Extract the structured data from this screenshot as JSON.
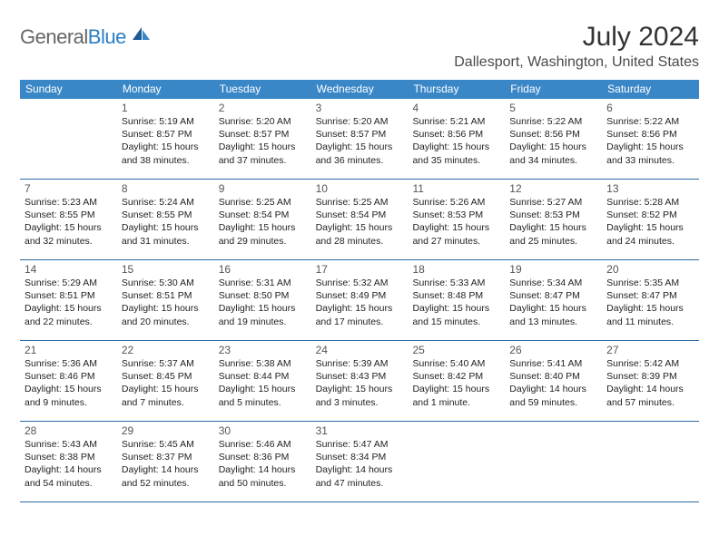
{
  "brand": {
    "general": "General",
    "blue": "Blue"
  },
  "title": "July 2024",
  "location": "Dallesport, Washington, United States",
  "colors": {
    "header_bg": "#3a87c8",
    "header_text": "#ffffff",
    "border": "#2a6aa5",
    "body_text": "#222222",
    "daynum_text": "#555555",
    "page_bg": "#ffffff"
  },
  "day_names": [
    "Sunday",
    "Monday",
    "Tuesday",
    "Wednesday",
    "Thursday",
    "Friday",
    "Saturday"
  ],
  "weeks": [
    [
      {
        "day": "",
        "sunrise": "",
        "sunset": "",
        "daylight": ""
      },
      {
        "day": "1",
        "sunrise": "Sunrise: 5:19 AM",
        "sunset": "Sunset: 8:57 PM",
        "daylight": "Daylight: 15 hours and 38 minutes."
      },
      {
        "day": "2",
        "sunrise": "Sunrise: 5:20 AM",
        "sunset": "Sunset: 8:57 PM",
        "daylight": "Daylight: 15 hours and 37 minutes."
      },
      {
        "day": "3",
        "sunrise": "Sunrise: 5:20 AM",
        "sunset": "Sunset: 8:57 PM",
        "daylight": "Daylight: 15 hours and 36 minutes."
      },
      {
        "day": "4",
        "sunrise": "Sunrise: 5:21 AM",
        "sunset": "Sunset: 8:56 PM",
        "daylight": "Daylight: 15 hours and 35 minutes."
      },
      {
        "day": "5",
        "sunrise": "Sunrise: 5:22 AM",
        "sunset": "Sunset: 8:56 PM",
        "daylight": "Daylight: 15 hours and 34 minutes."
      },
      {
        "day": "6",
        "sunrise": "Sunrise: 5:22 AM",
        "sunset": "Sunset: 8:56 PM",
        "daylight": "Daylight: 15 hours and 33 minutes."
      }
    ],
    [
      {
        "day": "7",
        "sunrise": "Sunrise: 5:23 AM",
        "sunset": "Sunset: 8:55 PM",
        "daylight": "Daylight: 15 hours and 32 minutes."
      },
      {
        "day": "8",
        "sunrise": "Sunrise: 5:24 AM",
        "sunset": "Sunset: 8:55 PM",
        "daylight": "Daylight: 15 hours and 31 minutes."
      },
      {
        "day": "9",
        "sunrise": "Sunrise: 5:25 AM",
        "sunset": "Sunset: 8:54 PM",
        "daylight": "Daylight: 15 hours and 29 minutes."
      },
      {
        "day": "10",
        "sunrise": "Sunrise: 5:25 AM",
        "sunset": "Sunset: 8:54 PM",
        "daylight": "Daylight: 15 hours and 28 minutes."
      },
      {
        "day": "11",
        "sunrise": "Sunrise: 5:26 AM",
        "sunset": "Sunset: 8:53 PM",
        "daylight": "Daylight: 15 hours and 27 minutes."
      },
      {
        "day": "12",
        "sunrise": "Sunrise: 5:27 AM",
        "sunset": "Sunset: 8:53 PM",
        "daylight": "Daylight: 15 hours and 25 minutes."
      },
      {
        "day": "13",
        "sunrise": "Sunrise: 5:28 AM",
        "sunset": "Sunset: 8:52 PM",
        "daylight": "Daylight: 15 hours and 24 minutes."
      }
    ],
    [
      {
        "day": "14",
        "sunrise": "Sunrise: 5:29 AM",
        "sunset": "Sunset: 8:51 PM",
        "daylight": "Daylight: 15 hours and 22 minutes."
      },
      {
        "day": "15",
        "sunrise": "Sunrise: 5:30 AM",
        "sunset": "Sunset: 8:51 PM",
        "daylight": "Daylight: 15 hours and 20 minutes."
      },
      {
        "day": "16",
        "sunrise": "Sunrise: 5:31 AM",
        "sunset": "Sunset: 8:50 PM",
        "daylight": "Daylight: 15 hours and 19 minutes."
      },
      {
        "day": "17",
        "sunrise": "Sunrise: 5:32 AM",
        "sunset": "Sunset: 8:49 PM",
        "daylight": "Daylight: 15 hours and 17 minutes."
      },
      {
        "day": "18",
        "sunrise": "Sunrise: 5:33 AM",
        "sunset": "Sunset: 8:48 PM",
        "daylight": "Daylight: 15 hours and 15 minutes."
      },
      {
        "day": "19",
        "sunrise": "Sunrise: 5:34 AM",
        "sunset": "Sunset: 8:47 PM",
        "daylight": "Daylight: 15 hours and 13 minutes."
      },
      {
        "day": "20",
        "sunrise": "Sunrise: 5:35 AM",
        "sunset": "Sunset: 8:47 PM",
        "daylight": "Daylight: 15 hours and 11 minutes."
      }
    ],
    [
      {
        "day": "21",
        "sunrise": "Sunrise: 5:36 AM",
        "sunset": "Sunset: 8:46 PM",
        "daylight": "Daylight: 15 hours and 9 minutes."
      },
      {
        "day": "22",
        "sunrise": "Sunrise: 5:37 AM",
        "sunset": "Sunset: 8:45 PM",
        "daylight": "Daylight: 15 hours and 7 minutes."
      },
      {
        "day": "23",
        "sunrise": "Sunrise: 5:38 AM",
        "sunset": "Sunset: 8:44 PM",
        "daylight": "Daylight: 15 hours and 5 minutes."
      },
      {
        "day": "24",
        "sunrise": "Sunrise: 5:39 AM",
        "sunset": "Sunset: 8:43 PM",
        "daylight": "Daylight: 15 hours and 3 minutes."
      },
      {
        "day": "25",
        "sunrise": "Sunrise: 5:40 AM",
        "sunset": "Sunset: 8:42 PM",
        "daylight": "Daylight: 15 hours and 1 minute."
      },
      {
        "day": "26",
        "sunrise": "Sunrise: 5:41 AM",
        "sunset": "Sunset: 8:40 PM",
        "daylight": "Daylight: 14 hours and 59 minutes."
      },
      {
        "day": "27",
        "sunrise": "Sunrise: 5:42 AM",
        "sunset": "Sunset: 8:39 PM",
        "daylight": "Daylight: 14 hours and 57 minutes."
      }
    ],
    [
      {
        "day": "28",
        "sunrise": "Sunrise: 5:43 AM",
        "sunset": "Sunset: 8:38 PM",
        "daylight": "Daylight: 14 hours and 54 minutes."
      },
      {
        "day": "29",
        "sunrise": "Sunrise: 5:45 AM",
        "sunset": "Sunset: 8:37 PM",
        "daylight": "Daylight: 14 hours and 52 minutes."
      },
      {
        "day": "30",
        "sunrise": "Sunrise: 5:46 AM",
        "sunset": "Sunset: 8:36 PM",
        "daylight": "Daylight: 14 hours and 50 minutes."
      },
      {
        "day": "31",
        "sunrise": "Sunrise: 5:47 AM",
        "sunset": "Sunset: 8:34 PM",
        "daylight": "Daylight: 14 hours and 47 minutes."
      },
      {
        "day": "",
        "sunrise": "",
        "sunset": "",
        "daylight": ""
      },
      {
        "day": "",
        "sunrise": "",
        "sunset": "",
        "daylight": ""
      },
      {
        "day": "",
        "sunrise": "",
        "sunset": "",
        "daylight": ""
      }
    ]
  ]
}
